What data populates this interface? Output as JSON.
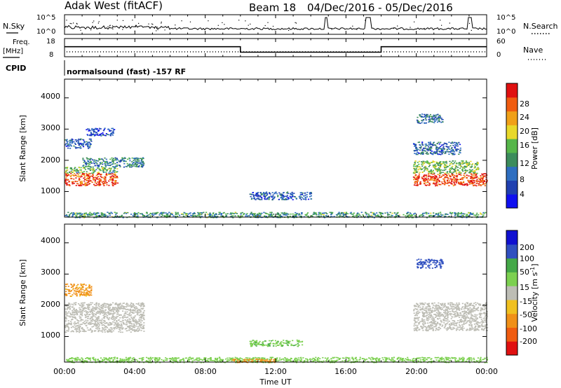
{
  "header": {
    "station": "Adak West (fitACF)",
    "beam": "Beam 18",
    "dates": "04/Dec/2016 - 05/Dec/2016"
  },
  "top_panels": {
    "nsky_label": "N.Sky",
    "nsearch_label": "N.Search",
    "noise_ticks_left": [
      "10^5",
      "10^0"
    ],
    "noise_ticks_right": [
      "10^5",
      "10^0"
    ],
    "freq_label_1": "Freq.",
    "freq_label_2": "[MHz]",
    "freq_ticks": [
      "18",
      "8"
    ],
    "nave_label": "Nave",
    "nave_ticks": [
      "60",
      "0"
    ],
    "cpid_label": "CPID",
    "cpid_text": "normalsound (fast) -157 RF"
  },
  "x_axis": {
    "label": "Time UT",
    "ticks": [
      "00:00",
      "04:00",
      "08:00",
      "12:00",
      "16:00",
      "20:00",
      "00:00"
    ]
  },
  "colors": {
    "power_scale": [
      "#1010f0",
      "#2040b0",
      "#2e6ec0",
      "#3c8c5c",
      "#56b64a",
      "#e8d82a",
      "#f0a018",
      "#f05c10",
      "#e01010"
    ],
    "velocity_scale": [
      "#e01010",
      "#f05c10",
      "#f09018",
      "#f0c020",
      "#bdbdb5",
      "#7cd050",
      "#44a848",
      "#3050c0",
      "#1010d0"
    ]
  },
  "chart_data": [
    {
      "type": "line",
      "title": "",
      "series": [
        {
          "name": "N.Sky",
          "values": []
        },
        {
          "name": "N.Search",
          "values": []
        }
      ],
      "xlabel": "",
      "ylabel": "",
      "x_range_hours": [
        0,
        24
      ],
      "y_ticks": [
        "10^0",
        "10^5"
      ],
      "log_scale": true
    },
    {
      "type": "line",
      "title": "",
      "series": [
        {
          "name": "Freq.",
          "x": [
            0,
            10,
            10,
            18,
            18,
            24
          ],
          "values": [
            13.5,
            13.5,
            10.5,
            10.5,
            13.5,
            13.5
          ]
        },
        {
          "name": "Nave",
          "x": [
            0,
            24
          ],
          "values": [
            6,
            6
          ]
        }
      ],
      "ylim_freq": [
        8,
        18
      ],
      "ylim_nave": [
        0,
        60
      ]
    },
    {
      "type": "heatmap",
      "title": "",
      "ylabel": "Slant Range [km]",
      "y_ticks": [
        "1000",
        "2000",
        "3000",
        "4000"
      ],
      "ylim": [
        180,
        4600
      ],
      "x_range_hours": [
        0,
        24
      ],
      "colorbar_label": "Power [dB]",
      "colorbar_ticks": [
        "4",
        "8",
        "12",
        "16",
        "20",
        "24",
        "28"
      ],
      "colorbar_range": [
        0,
        30
      ],
      "regions": [
        {
          "t": [
            0.0,
            3.0
          ],
          "r": [
            1200,
            1600
          ],
          "value": 26
        },
        {
          "t": [
            0.0,
            3.0
          ],
          "r": [
            1600,
            1800
          ],
          "value": 14
        },
        {
          "t": [
            1.0,
            4.5
          ],
          "r": [
            1800,
            2100
          ],
          "value": 10
        },
        {
          "t": [
            0.0,
            1.5
          ],
          "r": [
            2400,
            2700
          ],
          "value": 7
        },
        {
          "t": [
            1.2,
            2.8
          ],
          "r": [
            2800,
            3050
          ],
          "value": 6
        },
        {
          "t": [
            10.5,
            14.0
          ],
          "r": [
            750,
            1000
          ],
          "value": 7
        },
        {
          "t": [
            0.0,
            24.0
          ],
          "r": [
            180,
            350
          ],
          "value": 12
        },
        {
          "t": [
            19.8,
            24.0
          ],
          "r": [
            1200,
            1600
          ],
          "value": 27
        },
        {
          "t": [
            19.8,
            23.5
          ],
          "r": [
            1600,
            2000
          ],
          "value": 15
        },
        {
          "t": [
            19.8,
            22.5
          ],
          "r": [
            2200,
            2600
          ],
          "value": 8
        },
        {
          "t": [
            20.0,
            21.5
          ],
          "r": [
            3200,
            3500
          ],
          "value": 9
        }
      ]
    },
    {
      "type": "heatmap",
      "title": "",
      "ylabel": "Slant Range [km]",
      "y_ticks": [
        "1000",
        "2000",
        "3000",
        "4000"
      ],
      "ylim": [
        180,
        4600
      ],
      "x_range_hours": [
        0,
        24
      ],
      "colorbar_label": "Velocity [m s^-1]",
      "colorbar_ticks": [
        "-200",
        "-100",
        "-50",
        "-15",
        "15",
        "50",
        "100",
        "200"
      ],
      "colorbar_range": [
        -250,
        250
      ],
      "regions": [
        {
          "t": [
            0.0,
            4.5
          ],
          "r": [
            1150,
            2100
          ],
          "value": 0
        },
        {
          "t": [
            0.0,
            1.5
          ],
          "r": [
            2300,
            2700
          ],
          "value": -60
        },
        {
          "t": [
            10.5,
            13.5
          ],
          "r": [
            700,
            900
          ],
          "value": 40
        },
        {
          "t": [
            0.0,
            24.0
          ],
          "r": [
            180,
            350
          ],
          "value": 30
        },
        {
          "t": [
            9.5,
            12.0
          ],
          "r": [
            180,
            300
          ],
          "value": -80
        },
        {
          "t": [
            19.8,
            24.0
          ],
          "r": [
            1200,
            2100
          ],
          "value": 0
        },
        {
          "t": [
            20.0,
            21.5
          ],
          "r": [
            3200,
            3500
          ],
          "value": 150
        }
      ]
    }
  ]
}
